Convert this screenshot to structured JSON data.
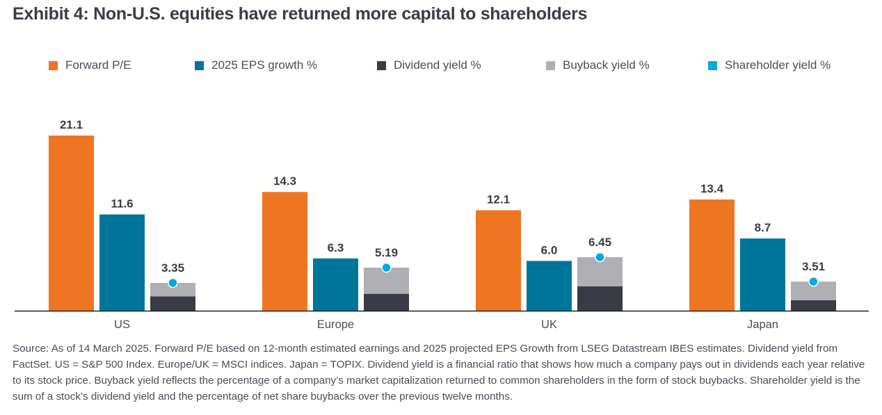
{
  "title": "Exhibit 4: Non-U.S. equities have returned more capital to shareholders",
  "colors": {
    "forward_pe": "#ee7623",
    "eps_growth": "#00759a",
    "dividend_yield": "#393c46",
    "buyback_yield": "#b0afb3",
    "shareholder_yield": "#00a9e0",
    "axis": "#222222",
    "label_text": "#3a3d47"
  },
  "legend": [
    {
      "key": "forward_pe",
      "label": "Forward P/E"
    },
    {
      "key": "eps_growth",
      "label": "2025 EPS growth %"
    },
    {
      "key": "dividend_yield",
      "label": "Dividend yield %"
    },
    {
      "key": "buyback_yield",
      "label": "Buyback yield %"
    },
    {
      "key": "shareholder_yield",
      "label": "Shareholder yield %"
    }
  ],
  "chart_data": {
    "type": "bar",
    "title": "Exhibit 4: Non-U.S. equities have returned more capital to shareholders",
    "xlabel": "",
    "ylabel": "",
    "categories": [
      "US",
      "Europe",
      "UK",
      "Japan"
    ],
    "ylim": [
      0,
      21.1
    ],
    "grid": false,
    "legend_position": "top",
    "series": [
      {
        "name": "Forward P/E",
        "key": "forward_pe",
        "kind": "bar",
        "values": [
          21.1,
          14.3,
          12.1,
          13.4
        ],
        "labels": [
          "21.1",
          "14.3",
          "12.1",
          "13.4"
        ]
      },
      {
        "name": "2025 EPS growth %",
        "key": "eps_growth",
        "kind": "bar",
        "values": [
          11.6,
          6.3,
          6.0,
          8.7
        ],
        "labels": [
          "11.6",
          "6.3",
          "6.0",
          "8.7"
        ]
      },
      {
        "name": "Dividend yield %",
        "key": "dividend_yield",
        "kind": "stacked",
        "stack": "yield",
        "values": [
          1.73,
          2.04,
          2.93,
          1.26
        ]
      },
      {
        "name": "Buyback yield %",
        "key": "buyback_yield",
        "kind": "stacked",
        "stack": "yield",
        "values": [
          1.62,
          3.15,
          3.52,
          2.25
        ]
      },
      {
        "name": "Shareholder yield %",
        "key": "shareholder_yield",
        "kind": "point",
        "values": [
          3.35,
          5.19,
          6.45,
          3.51
        ],
        "labels": [
          "3.35",
          "5.19",
          "6.45",
          "3.51"
        ]
      }
    ]
  },
  "footnote": "Source: As of 14 March 2025. Forward P/E based on 12-month estimated earnings and 2025 projected EPS Growth from LSEG Datastream IBES estimates. Dividend yield from FactSet. US = S&P 500 Index. Europe/UK = MSCI indices. Japan = TOPIX. Dividend yield is a financial ratio that shows how much a company pays out in dividends each year relative to its stock price. Buyback yield reflects the percentage of a company’s market capitalization returned to common shareholders in the form of stock buybacks. Shareholder yield is the sum of a stock’s dividend yield and the percentage of net share buybacks over the previous twelve months."
}
